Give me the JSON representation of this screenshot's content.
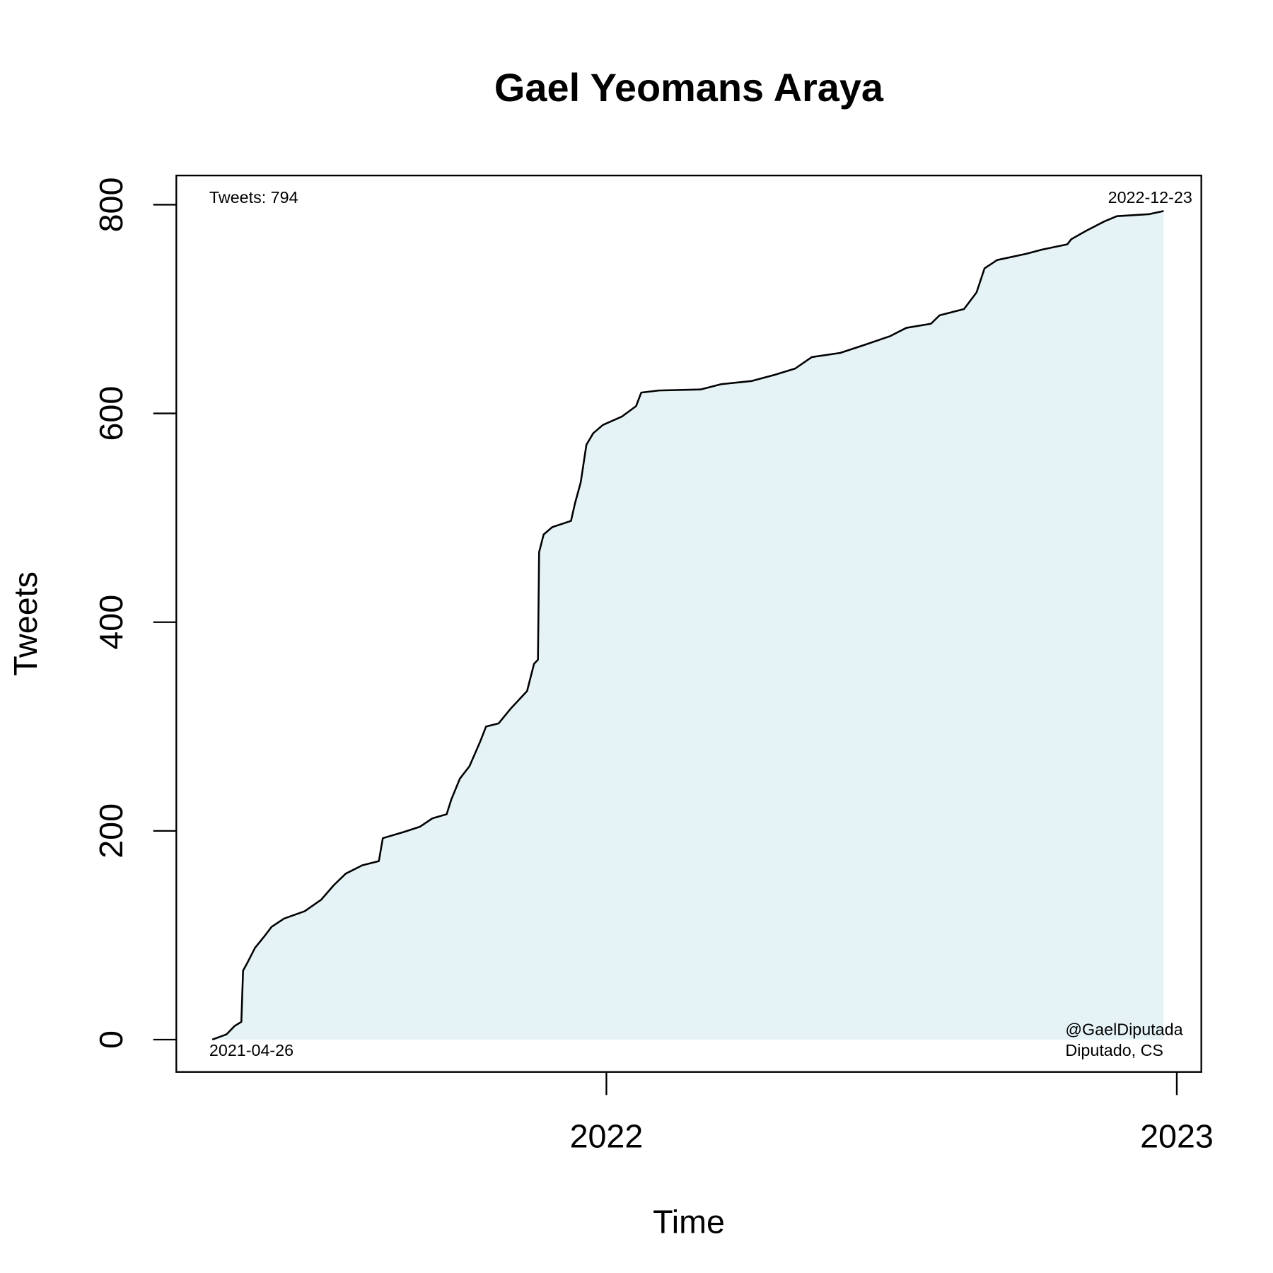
{
  "chart_data": {
    "type": "line",
    "title": "Gael Yeomans Araya",
    "xlabel": "Time",
    "ylabel": "Tweets",
    "annotations": [
      "Tweets: 794",
      "2022-12-23",
      "2021-04-26",
      "@GaelDiputada",
      "Diputado, CS"
    ],
    "xlim": [
      2021.246,
      2023.043
    ],
    "ylim": [
      -31,
      828
    ],
    "xticks": [
      2022,
      2023
    ],
    "yticks": [
      0,
      200,
      400,
      600,
      800
    ],
    "series": [
      {
        "color": "#000000",
        "fill": "#e6f3f6",
        "x": [
          2021.309,
          2021.334,
          2021.348,
          2021.36,
          2021.363,
          2021.37,
          2021.384,
          2021.399,
          2021.413,
          2021.435,
          2021.471,
          2021.5,
          2021.522,
          2021.543,
          2021.572,
          2021.601,
          2021.608,
          2021.645,
          2021.673,
          2021.695,
          2021.72,
          2021.728,
          2021.743,
          2021.76,
          2021.779,
          2021.789,
          2021.811,
          2021.832,
          2021.861,
          2021.873,
          2021.88,
          2021.882,
          2021.89,
          2021.905,
          2021.938,
          2021.945,
          2021.955,
          2021.965,
          2021.977,
          2021.994,
          2022.027,
          2022.052,
          2022.061,
          2022.092,
          2022.165,
          2022.201,
          2022.254,
          2022.295,
          2022.331,
          2022.36,
          2022.41,
          2022.454,
          2022.497,
          2022.526,
          2022.569,
          2022.584,
          2022.627,
          2022.649,
          2022.663,
          2022.685,
          2022.736,
          2022.764,
          2022.808,
          2022.815,
          2022.841,
          2022.873,
          2022.895,
          2022.952,
          2022.977
        ],
        "values": [
          0,
          5,
          13,
          17,
          66,
          73,
          88,
          98,
          108,
          116,
          123,
          134,
          148,
          159,
          167,
          171,
          193,
          199,
          204,
          212,
          216,
          230,
          250,
          262,
          286,
          300,
          303,
          317,
          334,
          360,
          364,
          467,
          484,
          491,
          497,
          514,
          534,
          570,
          581,
          589,
          597,
          607,
          620,
          622,
          623,
          628,
          631,
          637,
          643,
          654,
          658,
          666,
          674,
          682,
          686,
          694,
          700,
          716,
          739,
          747,
          753,
          757,
          762,
          767,
          775,
          784,
          789,
          791,
          794
        ]
      }
    ]
  }
}
